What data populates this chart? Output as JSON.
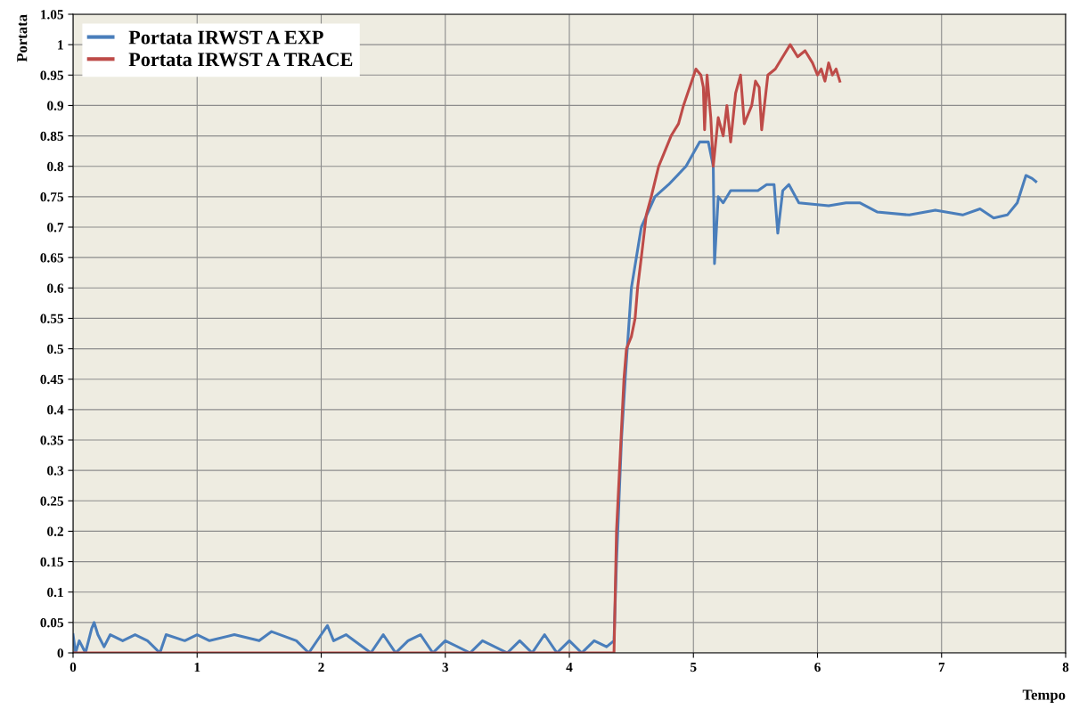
{
  "chart_data": {
    "type": "line",
    "xlabel": "Tempo",
    "ylabel": "Portata",
    "xlim": [
      0,
      8
    ],
    "xticks": [
      0,
      1,
      2,
      3,
      4,
      5,
      6,
      7,
      8
    ],
    "ylim": [
      0,
      1.05
    ],
    "yticks": [
      0,
      0.05,
      0.1,
      0.15,
      0.2,
      0.25,
      0.3,
      0.35,
      0.4,
      0.45,
      0.5,
      0.55,
      0.6,
      0.65,
      0.7,
      0.75,
      0.8,
      0.85,
      0.9,
      0.95,
      1,
      1.05
    ],
    "grid": true,
    "legend": "top left",
    "marker": "none",
    "line_style": "solid",
    "series": [
      {
        "name": "Portata IRWST A EXP",
        "color": "#4a7ebb",
        "x": [
          0,
          0.02,
          0.05,
          0.1,
          0.15,
          0.17,
          0.2,
          0.25,
          0.3,
          0.4,
          0.5,
          0.6,
          0.7,
          0.75,
          0.9,
          1.0,
          1.1,
          1.3,
          1.5,
          1.6,
          1.8,
          1.9,
          2.0,
          2.05,
          2.1,
          2.2,
          2.4,
          2.5,
          2.6,
          2.7,
          2.8,
          2.9,
          3.0,
          3.2,
          3.3,
          3.5,
          3.6,
          3.7,
          3.8,
          3.9,
          4.0,
          4.1,
          4.2,
          4.3,
          4.36,
          4.38,
          4.42,
          4.45,
          4.5,
          4.58,
          4.69,
          4.8,
          4.94,
          5.05,
          5.12,
          5.16,
          5.17,
          5.2,
          5.24,
          5.3,
          5.52,
          5.59,
          5.65,
          5.68,
          5.72,
          5.77,
          5.85,
          6.09,
          6.23,
          6.34,
          6.48,
          6.74,
          6.95,
          7.17,
          7.31,
          7.42,
          7.53,
          7.61,
          7.68,
          7.73,
          7.76
        ],
        "values": [
          0.03,
          0.0,
          0.02,
          0.0,
          0.04,
          0.05,
          0.03,
          0.01,
          0.03,
          0.02,
          0.03,
          0.02,
          0.0,
          0.03,
          0.02,
          0.03,
          0.02,
          0.03,
          0.02,
          0.035,
          0.02,
          0.0,
          0.03,
          0.045,
          0.02,
          0.03,
          0.0,
          0.03,
          0.0,
          0.02,
          0.03,
          0.0,
          0.02,
          0.0,
          0.02,
          0.0,
          0.02,
          0.0,
          0.03,
          0.0,
          0.02,
          0.0,
          0.02,
          0.01,
          0.02,
          0.15,
          0.35,
          0.45,
          0.6,
          0.7,
          0.75,
          0.77,
          0.8,
          0.84,
          0.84,
          0.8,
          0.64,
          0.75,
          0.74,
          0.76,
          0.76,
          0.77,
          0.77,
          0.69,
          0.76,
          0.77,
          0.74,
          0.735,
          0.74,
          0.74,
          0.725,
          0.72,
          0.728,
          0.72,
          0.73,
          0.715,
          0.72,
          0.74,
          0.785,
          0.78,
          0.775
        ]
      },
      {
        "name": "Portata IRWST A TRACE",
        "color": "#be4b48",
        "x": [
          0,
          4.36,
          4.38,
          4.44,
          4.46,
          4.5,
          4.53,
          4.55,
          4.58,
          4.62,
          4.66,
          4.72,
          4.76,
          4.82,
          4.88,
          4.92,
          4.97,
          5.02,
          5.06,
          5.08,
          5.09,
          5.11,
          5.14,
          5.16,
          5.2,
          5.24,
          5.27,
          5.3,
          5.34,
          5.38,
          5.41,
          5.47,
          5.5,
          5.53,
          5.55,
          5.6,
          5.66,
          5.72,
          5.78,
          5.84,
          5.9,
          5.96,
          6.0,
          6.03,
          6.06,
          6.09,
          6.12,
          6.15,
          6.18
        ],
        "values": [
          0,
          0,
          0.2,
          0.45,
          0.5,
          0.52,
          0.55,
          0.6,
          0.65,
          0.72,
          0.75,
          0.8,
          0.82,
          0.85,
          0.87,
          0.9,
          0.93,
          0.96,
          0.95,
          0.93,
          0.86,
          0.95,
          0.88,
          0.8,
          0.88,
          0.85,
          0.9,
          0.84,
          0.92,
          0.95,
          0.87,
          0.9,
          0.94,
          0.93,
          0.86,
          0.95,
          0.96,
          0.98,
          1.0,
          0.98,
          0.99,
          0.97,
          0.95,
          0.96,
          0.94,
          0.97,
          0.95,
          0.96,
          0.94
        ]
      }
    ]
  }
}
